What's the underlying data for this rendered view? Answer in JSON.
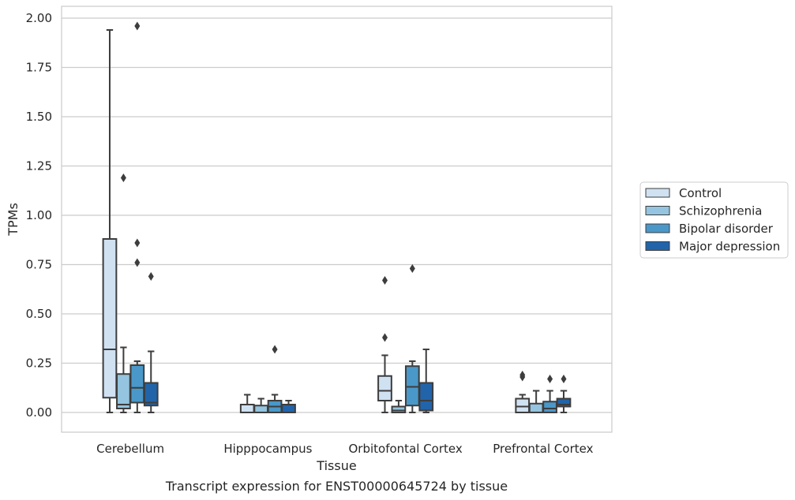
{
  "chart_data": {
    "type": "boxplot",
    "xlabel": "Tissue",
    "ylabel": "TPMs",
    "caption": "Transcript expression for ENST00000645724 by tissue",
    "ylim": [
      -0.1,
      2.06
    ],
    "yticks": [
      "0.00",
      "0.25",
      "0.50",
      "0.75",
      "1.00",
      "1.25",
      "1.50",
      "1.75",
      "2.00"
    ],
    "grid": "horizontal",
    "legend_position": "right",
    "categories": [
      "Cerebellum",
      "Hipppocampus",
      "Orbitofontal Cortex",
      "Prefrontal Cortex"
    ],
    "series": [
      {
        "name": "Control",
        "color": "#d0e1f2",
        "boxes": [
          {
            "whislo": 0.0,
            "q1": 0.075,
            "med": 0.32,
            "q3": 0.88,
            "whishi": 1.94,
            "fliers": []
          },
          {
            "whislo": 0.0,
            "q1": 0.0,
            "med": 0.0,
            "q3": 0.04,
            "whishi": 0.09,
            "fliers": []
          },
          {
            "whislo": 0.0,
            "q1": 0.06,
            "med": 0.11,
            "q3": 0.185,
            "whishi": 0.29,
            "fliers": [
              0.38,
              0.67
            ]
          },
          {
            "whislo": 0.0,
            "q1": 0.0,
            "med": 0.03,
            "q3": 0.07,
            "whishi": 0.09,
            "fliers": [
              0.18,
              0.19
            ]
          }
        ]
      },
      {
        "name": "Schizophrenia",
        "color": "#94c4df",
        "boxes": [
          {
            "whislo": 0.0,
            "q1": 0.02,
            "med": 0.04,
            "q3": 0.195,
            "whishi": 0.33,
            "fliers": [
              1.19
            ]
          },
          {
            "whislo": 0.0,
            "q1": 0.0,
            "med": 0.0,
            "q3": 0.035,
            "whishi": 0.07,
            "fliers": []
          },
          {
            "whislo": 0.0,
            "q1": 0.0,
            "med": 0.01,
            "q3": 0.03,
            "whishi": 0.06,
            "fliers": []
          },
          {
            "whislo": 0.0,
            "q1": 0.0,
            "med": 0.0,
            "q3": 0.045,
            "whishi": 0.11,
            "fliers": []
          }
        ]
      },
      {
        "name": "Bipolar disorder",
        "color": "#4a98c9",
        "boxes": [
          {
            "whislo": 0.0,
            "q1": 0.05,
            "med": 0.125,
            "q3": 0.24,
            "whishi": 0.26,
            "fliers": [
              0.76,
              0.86,
              1.96
            ]
          },
          {
            "whislo": 0.0,
            "q1": 0.0,
            "med": 0.03,
            "q3": 0.06,
            "whishi": 0.09,
            "fliers": [
              0.32
            ]
          },
          {
            "whislo": 0.0,
            "q1": 0.035,
            "med": 0.13,
            "q3": 0.235,
            "whishi": 0.26,
            "fliers": [
              0.73
            ]
          },
          {
            "whislo": 0.0,
            "q1": 0.0,
            "med": 0.02,
            "q3": 0.055,
            "whishi": 0.11,
            "fliers": [
              0.17
            ]
          }
        ]
      },
      {
        "name": "Major depression",
        "color": "#2264aa",
        "boxes": [
          {
            "whislo": 0.0,
            "q1": 0.035,
            "med": 0.05,
            "q3": 0.15,
            "whishi": 0.31,
            "fliers": [
              0.69
            ]
          },
          {
            "whislo": 0.0,
            "q1": 0.0,
            "med": 0.0,
            "q3": 0.04,
            "whishi": 0.06,
            "fliers": []
          },
          {
            "whislo": 0.0,
            "q1": 0.01,
            "med": 0.06,
            "q3": 0.15,
            "whishi": 0.32,
            "fliers": []
          },
          {
            "whislo": 0.0,
            "q1": 0.03,
            "med": 0.04,
            "q3": 0.07,
            "whishi": 0.11,
            "fliers": [
              0.17
            ]
          }
        ]
      }
    ]
  }
}
